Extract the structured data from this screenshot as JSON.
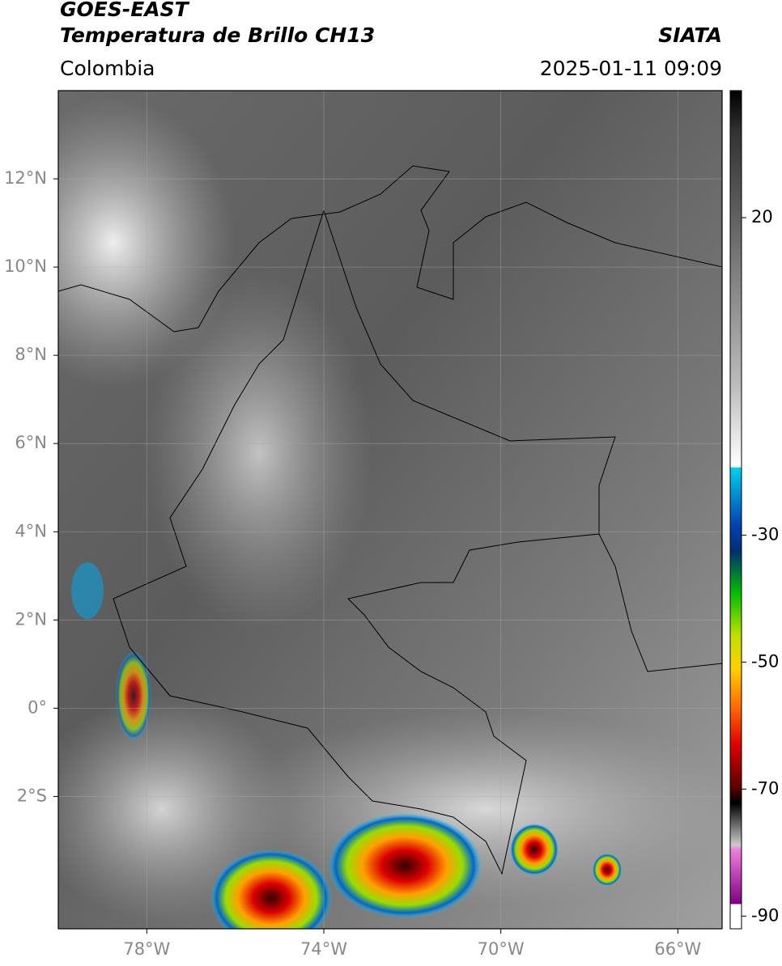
{
  "header": {
    "title": "GOES-EAST",
    "subtitle": "Temperatura de Brillo CH13",
    "source": "SIATA",
    "region": "Colombia",
    "datetime": "2025-01-11 09:09"
  },
  "map": {
    "xlim": [
      -80,
      -65
    ],
    "ylim": [
      -5,
      14
    ],
    "xticks": [
      {
        "value": -78,
        "label": "78°W"
      },
      {
        "value": -74,
        "label": "74°W"
      },
      {
        "value": -70,
        "label": "70°W"
      },
      {
        "value": -66,
        "label": "66°W"
      }
    ],
    "yticks": [
      {
        "value": 12,
        "label": "12°N"
      },
      {
        "value": 10,
        "label": "10°N"
      },
      {
        "value": 8,
        "label": "8°N"
      },
      {
        "value": 6,
        "label": "6°N"
      },
      {
        "value": 4,
        "label": "4°N"
      },
      {
        "value": 2,
        "label": "2°N"
      },
      {
        "value": 0,
        "label": "0°"
      },
      {
        "value": -2,
        "label": "2°S"
      }
    ],
    "grid": true
  },
  "colorbar": {
    "lim": [
      -92,
      40
    ],
    "ticks": [
      20,
      -30,
      -50,
      -70,
      -90
    ]
  }
}
